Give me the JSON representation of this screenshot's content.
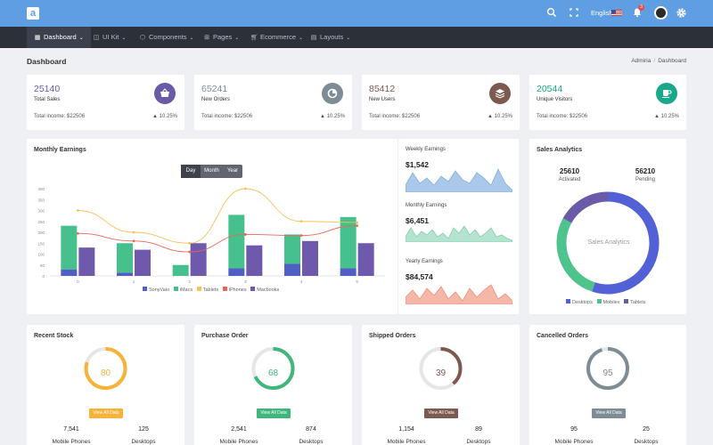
{
  "topbar": {
    "logo_letter": "a",
    "language": "English",
    "notification_count": "3"
  },
  "nav": {
    "items": [
      {
        "label": "Dashboard",
        "icon": "grid-icon"
      },
      {
        "label": "UI Kit",
        "icon": "layers-icon"
      },
      {
        "label": "Components",
        "icon": "cube-icon"
      },
      {
        "label": "Pages",
        "icon": "pages-icon"
      },
      {
        "label": "Ecommerce",
        "icon": "cart-icon"
      },
      {
        "label": "Layouts",
        "icon": "layouts-icon"
      }
    ]
  },
  "page": {
    "title": "Dashboard",
    "breadcrumb": [
      "Admiria",
      "Dashboard"
    ]
  },
  "stats": [
    {
      "value": "25140",
      "label": "Total Sales",
      "income": "Total income: $22506",
      "pct": "10.25%",
      "icon": "basket-icon",
      "color": "#6a5aa8"
    },
    {
      "value": "65241",
      "label": "New Orders",
      "income": "Total income: $22506",
      "pct": "10.25%",
      "icon": "pie-icon",
      "color": "#7e8c96"
    },
    {
      "value": "85412",
      "label": "New Users",
      "income": "Total income: $22506",
      "pct": "10.25%",
      "icon": "stack-icon",
      "color": "#7c5a4f"
    },
    {
      "value": "20544",
      "label": "Unique Visitors",
      "income": "Total income: $22506",
      "pct": "10.25%",
      "icon": "cup-icon",
      "color": "#1aa88a"
    }
  ],
  "monthly": {
    "title": "Monthly Earnings",
    "tabs": [
      "Day",
      "Month",
      "Year"
    ]
  },
  "chart_data": {
    "type": "bar",
    "categories": [
      "0",
      "1",
      "2",
      "3",
      "4",
      "5"
    ],
    "ylim": [
      0,
      400
    ],
    "yticks": [
      "0",
      "50",
      "100",
      "150",
      "200",
      "250",
      "300",
      "350",
      "400"
    ],
    "series": [
      {
        "name": "SonyVaio",
        "type": "bar",
        "stack": "a",
        "values": [
          30,
          15,
          0,
          35,
          55,
          35
        ],
        "color": "#4f5fc5"
      },
      {
        "name": "iMacs",
        "type": "bar",
        "stack": "a",
        "values": [
          200,
          135,
          50,
          245,
          135,
          235
        ],
        "color": "#46c08c"
      },
      {
        "name": "Tablets",
        "type": "line",
        "values": [
          300,
          200,
          150,
          400,
          250,
          245
        ],
        "color": "#f6c25a"
      },
      {
        "name": "iPhones",
        "type": "line",
        "values": [
          195,
          160,
          110,
          190,
          185,
          230
        ],
        "color": "#e66a56"
      },
      {
        "name": "Macbooks",
        "type": "bar",
        "values": [
          130,
          120,
          150,
          140,
          160,
          150
        ],
        "color": "#6e59ad"
      }
    ]
  },
  "earnings": [
    {
      "label": "Weekly Earnings",
      "value": "$1,542",
      "color": "#a9c8ea",
      "stroke": "#86b1df"
    },
    {
      "label": "Monthly Earnings",
      "value": "$6,451",
      "color": "#b4e3cf",
      "stroke": "#82cfae"
    },
    {
      "label": "Yearly Earnings",
      "value": "$84,574",
      "color": "#f4b7a8",
      "stroke": "#ee907b"
    }
  ],
  "sales_analytics": {
    "title": "Sales Analytics",
    "activated_value": "25610",
    "activated_label": "Activated",
    "pending_value": "56210",
    "pending_label": "Pending",
    "center_text": "Sales Analytics",
    "slices": [
      {
        "name": "Desktops",
        "value": 55,
        "color": "#5262d6"
      },
      {
        "name": "Mobiles",
        "value": 28,
        "color": "#4fc38d"
      },
      {
        "name": "Tablets",
        "value": 17,
        "color": "#6a5aa8"
      }
    ]
  },
  "orders": [
    {
      "title": "Recent Stock",
      "value": 80,
      "color": "#f7b339",
      "button": "View All Data",
      "mobile_count": "7,541",
      "mobile_label": "Mobile Phones",
      "desktop_count": "125",
      "desktop_label": "Desktops"
    },
    {
      "title": "Purchase Order",
      "value": 68,
      "color": "#3fb77c",
      "button": "View All Data",
      "mobile_count": "2,541",
      "mobile_label": "Mobile Phones",
      "desktop_count": "874",
      "desktop_label": "Desktops"
    },
    {
      "title": "Shipped Orders",
      "value": 39,
      "color": "#7c5a4f",
      "button": "View All Data",
      "mobile_count": "1,154",
      "mobile_label": "Mobile Phones",
      "desktop_count": "89",
      "desktop_label": "Desktops"
    },
    {
      "title": "Cancelled Orders",
      "value": 95,
      "color": "#7e8c96",
      "button": "View All Data",
      "mobile_count": "95",
      "mobile_label": "Mobile Phones",
      "desktop_count": "25",
      "desktop_label": "Desktops"
    }
  ]
}
